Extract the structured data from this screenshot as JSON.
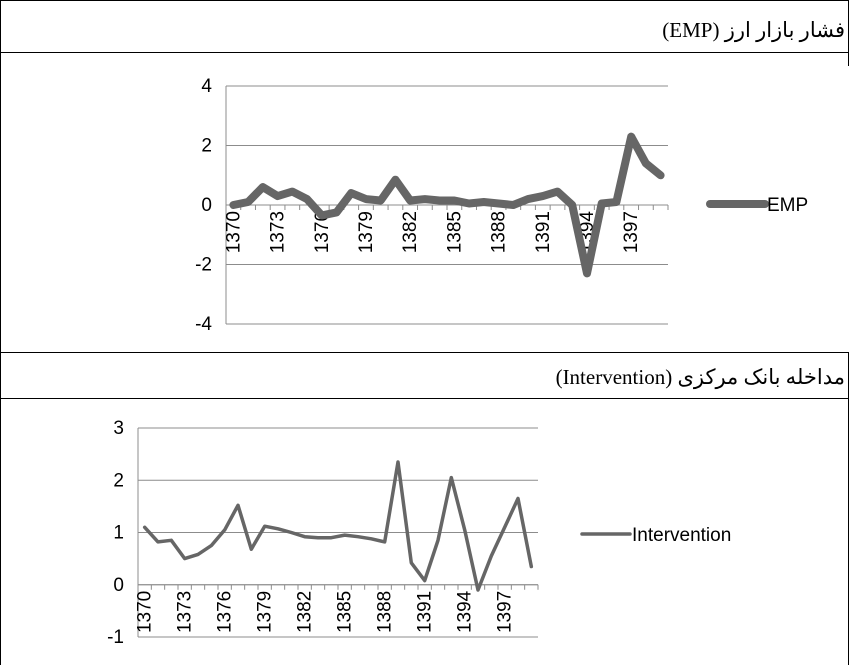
{
  "caption1": "فشار بازار ارز (EMP)",
  "caption2": "مداخله بانک مرکزی (Intervention)",
  "chart_data": [
    {
      "type": "line",
      "x": [
        "1370",
        "1371",
        "1372",
        "1373",
        "1374",
        "1375",
        "1376",
        "1377",
        "1378",
        "1379",
        "1380",
        "1381",
        "1382",
        "1383",
        "1384",
        "1385",
        "1386",
        "1387",
        "1388",
        "1389",
        "1390",
        "1391",
        "1392",
        "1393",
        "1394",
        "1395",
        "1396",
        "1397",
        "1398",
        "1399"
      ],
      "xticks": [
        "1370",
        "1373",
        "1376",
        "1379",
        "1382",
        "1385",
        "1388",
        "1391",
        "1394",
        "1397"
      ],
      "series": [
        {
          "name": "EMP",
          "values": [
            0.0,
            0.1,
            0.6,
            0.3,
            0.45,
            0.2,
            -0.35,
            -0.25,
            0.4,
            0.2,
            0.15,
            0.85,
            0.15,
            0.2,
            0.15,
            0.15,
            0.05,
            0.1,
            0.05,
            0.0,
            0.2,
            0.3,
            0.45,
            0.0,
            -2.3,
            0.05,
            0.1,
            2.3,
            1.4,
            1.0
          ]
        }
      ],
      "ylim": [
        -4,
        4
      ],
      "yticks": [
        -4,
        -2,
        0,
        2,
        4
      ],
      "color": "#666666",
      "legend": "right",
      "grid": true
    },
    {
      "type": "line",
      "x": [
        "1370",
        "1371",
        "1372",
        "1373",
        "1374",
        "1375",
        "1376",
        "1377",
        "1378",
        "1379",
        "1380",
        "1381",
        "1382",
        "1383",
        "1384",
        "1385",
        "1386",
        "1387",
        "1388",
        "1389",
        "1390",
        "1391",
        "1392",
        "1393",
        "1394",
        "1395",
        "1396",
        "1397",
        "1398",
        "1399"
      ],
      "xticks": [
        "1370",
        "1373",
        "1376",
        "1379",
        "1382",
        "1385",
        "1388",
        "1391",
        "1394",
        "1397"
      ],
      "series": [
        {
          "name": "Intervention",
          "values": [
            1.1,
            0.82,
            0.85,
            0.5,
            0.58,
            0.75,
            1.05,
            1.52,
            0.68,
            1.12,
            1.07,
            1.0,
            0.92,
            0.9,
            0.9,
            0.95,
            0.92,
            0.88,
            0.82,
            2.35,
            0.42,
            0.08,
            0.85,
            2.05,
            1.05,
            -0.1,
            0.55,
            1.1,
            1.65,
            0.35
          ]
        }
      ],
      "ylim": [
        -1,
        3
      ],
      "yticks": [
        -1,
        0,
        1,
        2,
        3
      ],
      "color": "#666666",
      "legend": "right",
      "grid": true
    }
  ]
}
